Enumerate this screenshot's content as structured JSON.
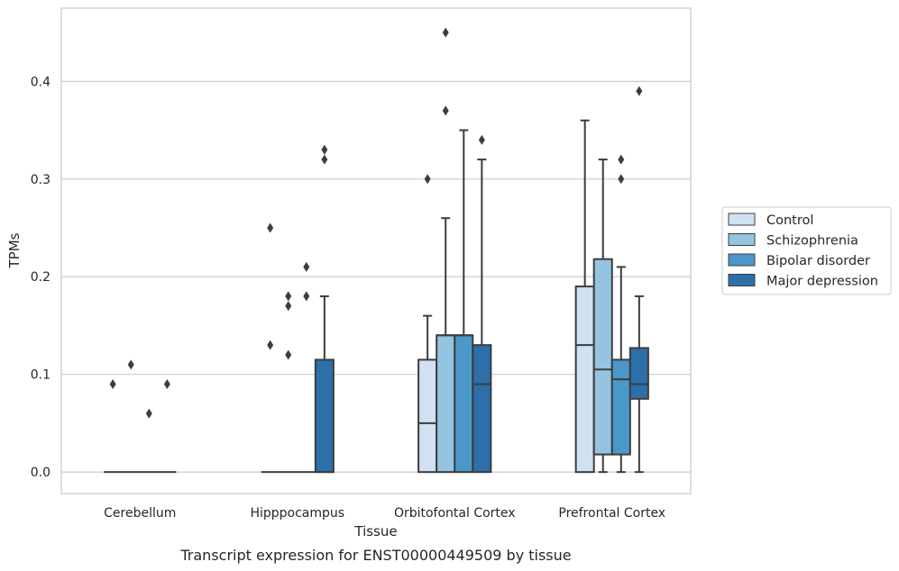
{
  "chart_data": {
    "type": "box",
    "title": "",
    "caption": "Transcript expression for ENST00000449509 by tissue",
    "xlabel": "Tissue",
    "ylabel": "TPMs",
    "ylim": [
      -0.022,
      0.475
    ],
    "yticks": [
      0.0,
      0.1,
      0.2,
      0.3,
      0.4
    ],
    "ytick_labels": [
      "0.0",
      "0.1",
      "0.2",
      "0.3",
      "0.4"
    ],
    "grid": "horizontal",
    "legend_position": "right",
    "categories": [
      "Cerebellum",
      "Hipppocampus",
      "Orbitofontal Cortex",
      "Prefrontal Cortex"
    ],
    "series": [
      {
        "name": "Control",
        "color": "#d0e1f2",
        "boxes": [
          {
            "whisker_low": 0,
            "q1": 0,
            "median": 0,
            "q3": 0,
            "whisker_high": 0,
            "outliers": [
              0.09
            ]
          },
          {
            "whisker_low": 0,
            "q1": 0,
            "median": 0,
            "q3": 0,
            "whisker_high": 0,
            "outliers": [
              0.25,
              0.13
            ]
          },
          {
            "whisker_low": 0,
            "q1": 0,
            "median": 0.05,
            "q3": 0.115,
            "whisker_high": 0.16,
            "outliers": [
              0.3
            ]
          },
          {
            "whisker_low": 0,
            "q1": 0,
            "median": 0.13,
            "q3": 0.19,
            "whisker_high": 0.36,
            "outliers": []
          }
        ]
      },
      {
        "name": "Schizophrenia",
        "color": "#94c4df",
        "boxes": [
          {
            "whisker_low": 0,
            "q1": 0,
            "median": 0,
            "q3": 0,
            "whisker_high": 0,
            "outliers": [
              0.11
            ]
          },
          {
            "whisker_low": 0,
            "q1": 0,
            "median": 0,
            "q3": 0,
            "whisker_high": 0,
            "outliers": [
              0.18,
              0.17,
              0.12
            ]
          },
          {
            "whisker_low": 0,
            "q1": 0,
            "median": 0.14,
            "q3": 0.14,
            "whisker_high": 0.26,
            "outliers": [
              0.45,
              0.37
            ]
          },
          {
            "whisker_low": 0,
            "q1": 0.018,
            "median": 0.105,
            "q3": 0.218,
            "whisker_high": 0.32,
            "outliers": []
          }
        ]
      },
      {
        "name": "Bipolar disorder",
        "color": "#4a98c9",
        "boxes": [
          {
            "whisker_low": 0,
            "q1": 0,
            "median": 0,
            "q3": 0,
            "whisker_high": 0,
            "outliers": [
              0.06
            ]
          },
          {
            "whisker_low": 0,
            "q1": 0,
            "median": 0,
            "q3": 0,
            "whisker_high": 0,
            "outliers": [
              0.21,
              0.18
            ]
          },
          {
            "whisker_low": 0,
            "q1": 0,
            "median": 0.14,
            "q3": 0.14,
            "whisker_high": 0.35,
            "outliers": []
          },
          {
            "whisker_low": 0,
            "q1": 0.018,
            "median": 0.095,
            "q3": 0.115,
            "whisker_high": 0.21,
            "outliers": [
              0.32,
              0.3
            ]
          }
        ]
      },
      {
        "name": "Major depression",
        "color": "#2c6fa9",
        "boxes": [
          {
            "whisker_low": 0,
            "q1": 0,
            "median": 0,
            "q3": 0,
            "whisker_high": 0,
            "outliers": [
              0.09
            ]
          },
          {
            "whisker_low": 0,
            "q1": 0,
            "median": 0,
            "q3": 0.115,
            "whisker_high": 0.18,
            "outliers": [
              0.33,
              0.32
            ]
          },
          {
            "whisker_low": 0,
            "q1": 0,
            "median": 0.09,
            "q3": 0.13,
            "whisker_high": 0.32,
            "outliers": [
              0.34
            ]
          },
          {
            "whisker_low": 0,
            "q1": 0.075,
            "median": 0.09,
            "q3": 0.127,
            "whisker_high": 0.18,
            "outliers": [
              0.39
            ]
          }
        ]
      }
    ]
  }
}
